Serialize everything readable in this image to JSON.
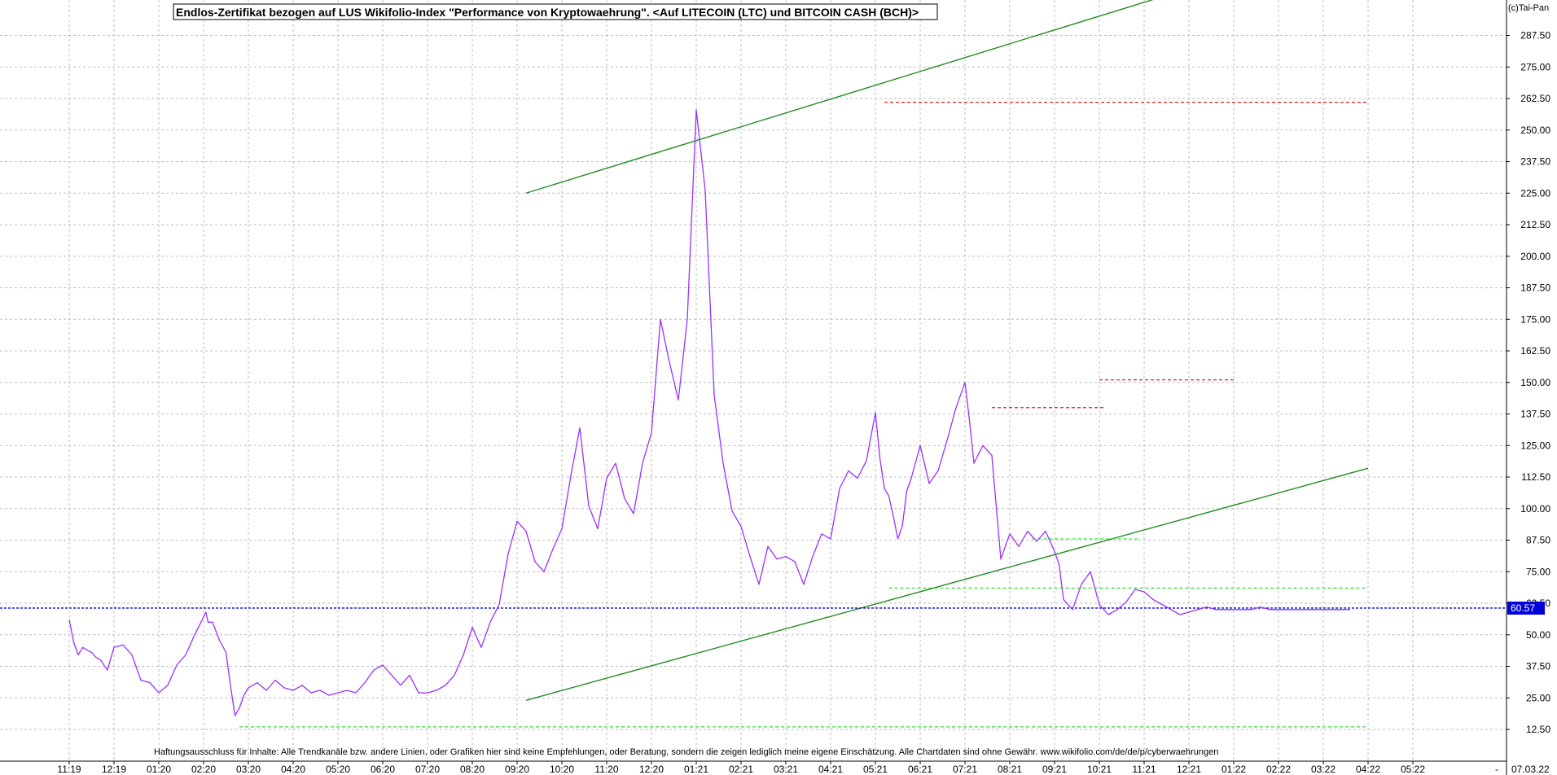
{
  "watermark": "(c)Tai-Pan",
  "disclaimer": "Haftungsausschluss für Inhalte: Alle Trendkanäle bzw. andere Linien, oder Grafiken hier sind keine Empfehlungen, oder Beratung, sondern die zeigen lediglich meine eigene Einschätzung. Alle Chartdaten sind ohne Gewähr.  www.wikifolio.com/de/de/p/cyberwaehrungen",
  "colors": {
    "price_line": "#9b30ff",
    "trend_line": "#228b22",
    "resistance": "#e02020",
    "support": "#33dd33",
    "current_line": "#0000dd",
    "current_badge": "#0000dd",
    "grid": "#bdbdbd"
  },
  "chart_data": {
    "type": "line",
    "title": "Endlos-Zertifikat bezogen auf LUS Wikifolio-Index \"Performance von Kryptowaehrung\". <Auf LITECOIN (LTC) und BITCOIN CASH (BCH)>",
    "xlabel": "",
    "ylabel": "",
    "ylim": [
      0,
      300
    ],
    "y_scale": "linear",
    "y_axis_position": "right",
    "grid": true,
    "y_ticks": [
      "12.50",
      "25.00",
      "37.50",
      "50.00",
      "62.50",
      "75.00",
      "87.50",
      "100.00",
      "112.50",
      "125.00",
      "137.50",
      "150.00",
      "162.50",
      "175.00",
      "187.50",
      "200.00",
      "212.50",
      "225.00",
      "237.50",
      "250.00",
      "262.50",
      "275.00",
      "287.50"
    ],
    "x_ticks": [
      "11:19",
      "12:19",
      "01:20",
      "02:20",
      "03:20",
      "04:20",
      "05:20",
      "06:20",
      "07:20",
      "08:20",
      "09:20",
      "10:20",
      "11:20",
      "12:20",
      "01:21",
      "02:21",
      "03:21",
      "04:21",
      "05:21",
      "06:21",
      "07:21",
      "08:21",
      "09:21",
      "10:21",
      "11:21",
      "12:21",
      "01:22",
      "02:22",
      "03:22",
      "04:22",
      "05:22"
    ],
    "x_end_label": "07.03.22",
    "x_dash_label": "-",
    "current_value": 60.57,
    "current_value_label": "60.57",
    "series": [
      {
        "x": [
          0,
          0.1,
          0.2,
          0.3,
          0.4,
          0.5,
          0.6,
          0.7,
          0.85,
          1,
          1.2,
          1.4,
          1.6,
          1.8,
          2,
          2.2,
          2.4,
          2.6,
          2.8,
          3,
          3.05,
          3.1,
          3.2,
          3.35,
          3.5,
          3.6,
          3.7,
          3.8,
          3.9,
          4,
          4.2,
          4.4,
          4.6,
          4.8,
          5,
          5.2,
          5.4,
          5.6,
          5.8,
          6,
          6.2,
          6.4,
          6.6,
          6.8,
          7,
          7.2,
          7.4,
          7.6,
          7.8,
          8,
          8.2,
          8.4,
          8.6,
          8.8,
          9,
          9.2,
          9.4,
          9.6,
          9.8,
          10,
          10.2,
          10.4,
          10.6,
          10.8,
          11,
          11.2,
          11.4,
          11.6,
          11.8,
          12,
          12.2,
          12.4,
          12.6,
          12.8,
          13,
          13.2,
          13.4,
          13.6,
          13.8,
          14,
          14.2,
          14.4,
          14.6,
          14.8,
          15,
          15.2,
          15.4,
          15.6,
          15.8,
          16,
          16.2,
          16.4,
          16.6,
          16.8,
          17,
          17.2,
          17.4,
          17.6,
          17.8,
          18,
          18.1,
          18.2,
          18.3,
          18.4,
          18.5,
          18.6,
          18.7,
          18.8,
          19,
          19.2,
          19.4,
          19.6,
          19.8,
          20,
          20.1,
          20.2,
          20.4,
          20.6,
          20.8,
          21,
          21.2,
          21.4,
          21.6,
          21.8,
          22,
          22.1,
          22.2,
          22.4,
          22.6,
          22.8,
          23,
          23.2,
          23.4,
          23.6,
          23.8,
          24,
          24.2,
          24.4,
          24.6,
          24.8,
          25,
          25.2,
          25.4,
          25.6,
          25.8,
          26,
          26.2,
          26.4,
          26.6,
          26.8,
          27,
          27.2,
          27.4,
          27.6,
          27.8,
          28,
          28.2,
          28.4,
          28.6
        ],
        "values": [
          56,
          47,
          42,
          45,
          44,
          43,
          41,
          40,
          36,
          45,
          46,
          42,
          32,
          31,
          27,
          30,
          38,
          42,
          50,
          57,
          59,
          55,
          55,
          48,
          43,
          30,
          18,
          21,
          26,
          29,
          31,
          28,
          32,
          29,
          28,
          30,
          27,
          28,
          26,
          27,
          28,
          27,
          31,
          36,
          38,
          34,
          30,
          34,
          27,
          27,
          28,
          30,
          34,
          42,
          53,
          45,
          55,
          62,
          82,
          95,
          91,
          79,
          75,
          84,
          92,
          113,
          132,
          101,
          92,
          112,
          118,
          104,
          98,
          118,
          130,
          175,
          158,
          143,
          175,
          258,
          226,
          145,
          118,
          99,
          93,
          81,
          70,
          85,
          80,
          81,
          79,
          70,
          81,
          90,
          88,
          108,
          115,
          112,
          119,
          138,
          120,
          108,
          105,
          97,
          88,
          93,
          107,
          112,
          125,
          110,
          115,
          127,
          140,
          150,
          135,
          118,
          125,
          121,
          80,
          90,
          85,
          91,
          87,
          91,
          83,
          78,
          64,
          60,
          70,
          75,
          62,
          58,
          60,
          63,
          68,
          67,
          64,
          62,
          60,
          58,
          59,
          60,
          61,
          60,
          60,
          60,
          60,
          60,
          61,
          60,
          60,
          60,
          60,
          60,
          60,
          60,
          60,
          60,
          60
        ]
      }
    ],
    "trend_lines": [
      {
        "x": [
          10.2,
          27.9
        ],
        "values": [
          225,
          322
        ]
      },
      {
        "x": [
          10.2,
          29.0
        ],
        "values": [
          24,
          116
        ]
      }
    ],
    "resistance_lines": [
      {
        "x": [
          18.2,
          29.0
        ],
        "values": [
          261,
          261
        ]
      },
      {
        "x": [
          20.6,
          23.1
        ],
        "values": [
          140,
          140
        ]
      },
      {
        "x": [
          23.0,
          26.0
        ],
        "values": [
          151,
          151
        ]
      }
    ],
    "support_lines": [
      {
        "x": [
          3.8,
          29.0
        ],
        "values": [
          13.5,
          13.5
        ]
      },
      {
        "x": [
          18.3,
          29.0
        ],
        "values": [
          68.5,
          68.5
        ]
      },
      {
        "x": [
          21.5,
          23.9
        ],
        "values": [
          88,
          88
        ]
      }
    ]
  }
}
